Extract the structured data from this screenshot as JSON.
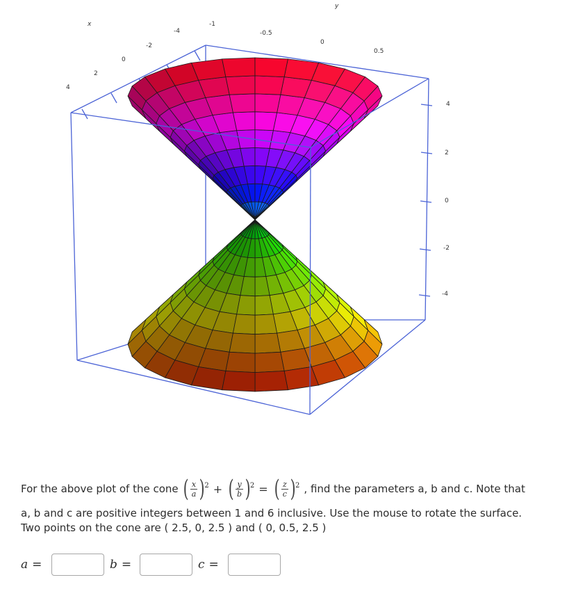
{
  "plot": {
    "axis_labels": {
      "x": "x",
      "y": "y"
    },
    "x_ticks": [
      "4",
      "2",
      "0",
      "-2",
      "-4"
    ],
    "y_ticks": [
      "-1",
      "-0.5",
      "0",
      "0.5"
    ],
    "z_ticks": [
      "4",
      "2",
      "0",
      "-2",
      "-4"
    ],
    "colors": {
      "box": "#4b63d6",
      "top_rim": "#e8102a",
      "bottom_rim": "#e63b1c"
    }
  },
  "problem": {
    "intro": "For the above plot of the cone",
    "equation": {
      "x": "x",
      "a": "a",
      "y": "y",
      "b": "b",
      "z": "z",
      "c": "c",
      "exp": "2",
      "plus": "+",
      "equals": "="
    },
    "after_equation": ", find the parameters a, b and c. Note that",
    "line2": "a, b and c are positive integers between 1 and 6 inclusive. Use the mouse to rotate the surface.",
    "line3": "Two points on the cone are ( 2.5, 0, 2.5 ) and ( 0, 0.5, 2.5 )"
  },
  "inputs": {
    "a_label": "a",
    "b_label": "b",
    "c_label": "c",
    "equals": "=",
    "a_value": "",
    "b_value": "",
    "c_value": ""
  }
}
